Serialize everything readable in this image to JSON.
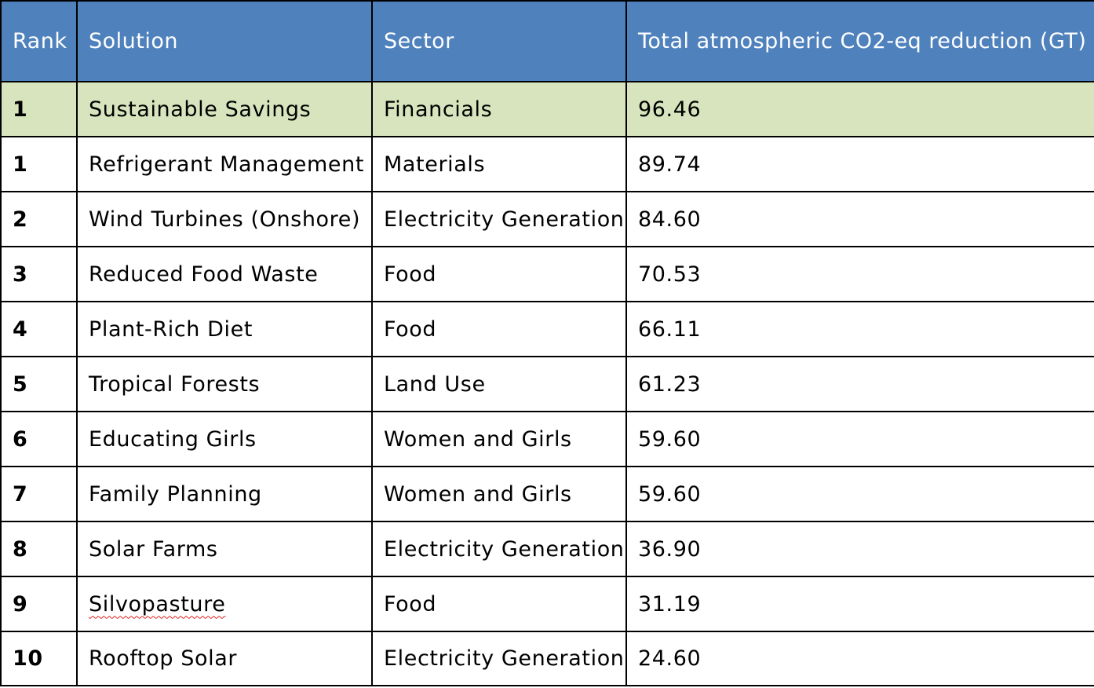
{
  "header": {
    "rank": "Rank",
    "solution": "Solution",
    "sector": "Sector",
    "reduction": "Total atmospheric CO2-eq reduction (GT)"
  },
  "colors": {
    "header_background": "#4f81bd",
    "header_text": "#ffffff",
    "highlight_row": "#d7e4bd",
    "spellcheck_underline": "#e02020"
  },
  "rows": [
    {
      "rank": "1",
      "solution": "Sustainable Savings",
      "sector": "Financials",
      "reduction": "96.46",
      "highlighted": true
    },
    {
      "rank": "1",
      "solution": "Refrigerant Management",
      "sector": "Materials",
      "reduction": "89.74"
    },
    {
      "rank": "2",
      "solution": "Wind Turbines (Onshore)",
      "sector": "Electricity Generation",
      "reduction": "84.60"
    },
    {
      "rank": "3",
      "solution": "Reduced Food Waste",
      "sector": "Food",
      "reduction": "70.53"
    },
    {
      "rank": "4",
      "solution": "Plant-Rich Diet",
      "sector": "Food",
      "reduction": "66.11"
    },
    {
      "rank": "5",
      "solution": "Tropical Forests",
      "sector": "Land Use",
      "reduction": "61.23"
    },
    {
      "rank": "6",
      "solution": "Educating Girls",
      "sector": "Women and Girls",
      "reduction": "59.60"
    },
    {
      "rank": "7",
      "solution": "Family Planning",
      "sector": "Women and Girls",
      "reduction": "59.60"
    },
    {
      "rank": "8",
      "solution": "Solar Farms",
      "sector": "Electricity Generation",
      "reduction": "36.90"
    },
    {
      "rank": "9",
      "solution": "Silvopasture",
      "sector": "Food",
      "reduction": "31.19",
      "spellcheck_flag": true
    },
    {
      "rank": "10",
      "solution": "Rooftop Solar",
      "sector": "Electricity Generation",
      "reduction": "24.60"
    }
  ]
}
